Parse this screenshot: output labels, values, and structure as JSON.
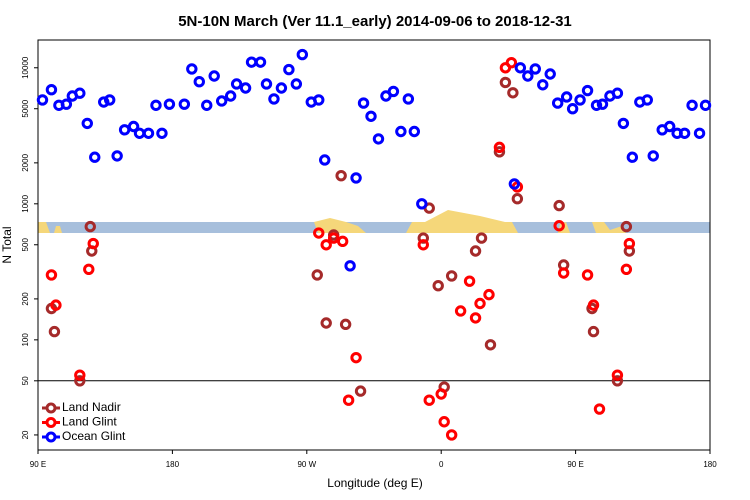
{
  "chart_data": {
    "type": "scatter",
    "title": "5N-10N March (Ver 11.1_early)   2014-09-06 to 2018-12-31",
    "x_label": "Longitude (deg E)",
    "y_label": "N Total",
    "log_y": true,
    "legend": "lower left",
    "hline": 50,
    "xlim": [
      90,
      540
    ],
    "ylim": [
      15.5,
      16000
    ],
    "xticks": [
      {
        "value": 90,
        "label": "90 E"
      },
      {
        "value": 180,
        "label": "180"
      },
      {
        "value": 270,
        "label": "90 W"
      },
      {
        "value": 360,
        "label": "0"
      },
      {
        "value": 450,
        "label": "90 E"
      },
      {
        "value": 540,
        "label": "180"
      }
    ],
    "yticks": [
      20,
      50,
      100,
      200,
      500,
      1000,
      2000,
      5000,
      10000
    ],
    "series": [
      {
        "name": "Land Nadir",
        "color": "#a52a2a",
        "x": [
          99,
          101,
          118,
          125,
          126,
          277,
          283,
          288,
          293,
          296,
          306,
          348,
          352,
          358,
          362,
          367,
          383,
          387,
          393,
          399,
          403,
          408,
          411,
          439,
          442,
          461,
          462,
          478,
          484,
          486
        ],
        "values": [
          170,
          115,
          50,
          680,
          450,
          300,
          133,
          590,
          1610,
          130,
          42,
          560,
          930,
          250,
          45,
          295,
          450,
          560,
          92,
          2410,
          7800,
          6550,
          1090,
          970,
          355,
          170,
          115,
          50,
          680,
          450
        ]
      },
      {
        "name": "Land Glint",
        "color": "#ff0000",
        "x": [
          99,
          102,
          118,
          124,
          127,
          278,
          283,
          288,
          294,
          298,
          303,
          348,
          352,
          360,
          362,
          367,
          373,
          379,
          383,
          386,
          392,
          399,
          403,
          407,
          411,
          439,
          442,
          458,
          462,
          466,
          478,
          484,
          486
        ],
        "values": [
          300,
          180,
          55,
          330,
          510,
          610,
          500,
          560,
          530,
          36,
          74,
          500,
          36,
          40,
          25,
          20,
          163,
          270,
          145,
          185,
          215,
          2600,
          10000,
          10900,
          1330,
          690,
          310,
          300,
          180,
          31,
          55,
          330,
          510
        ]
      },
      {
        "name": "Ocean Glint",
        "color": "#0000ff",
        "x": [
          93,
          99,
          104,
          109,
          113,
          118,
          123,
          128,
          134,
          138,
          143,
          148,
          154,
          158,
          164,
          169,
          173,
          178,
          188,
          193,
          198,
          203,
          208,
          213,
          219,
          223,
          229,
          233,
          239,
          243,
          248,
          253,
          258,
          263,
          267,
          273,
          278,
          282,
          299,
          303,
          308,
          313,
          318,
          323,
          328,
          333,
          338,
          342,
          347,
          409,
          413,
          418,
          423,
          428,
          433,
          438,
          444,
          448,
          453,
          458,
          464,
          468,
          473,
          478,
          482,
          488,
          493,
          498,
          502,
          508,
          513,
          518,
          523,
          528,
          533,
          537
        ],
        "values": [
          5800,
          6900,
          5300,
          5400,
          6200,
          6500,
          3900,
          2200,
          5600,
          5800,
          2250,
          3500,
          3700,
          3300,
          3300,
          5300,
          3300,
          5400,
          5400,
          9800,
          7900,
          5300,
          8700,
          5700,
          6200,
          7600,
          7100,
          11000,
          11000,
          7600,
          5900,
          7100,
          9700,
          7600,
          12500,
          5600,
          5800,
          2100,
          350,
          1550,
          5500,
          4400,
          3000,
          6200,
          6700,
          3400,
          5900,
          3400,
          1000,
          1400,
          10000,
          8700,
          9800,
          7500,
          9000,
          5500,
          6100,
          5000,
          5800,
          6800,
          5300,
          5400,
          6200,
          6500,
          3900,
          2200,
          5600,
          5800,
          2250,
          3500,
          3700,
          3300,
          3300,
          5300,
          3300,
          5300
        ]
      }
    ]
  }
}
